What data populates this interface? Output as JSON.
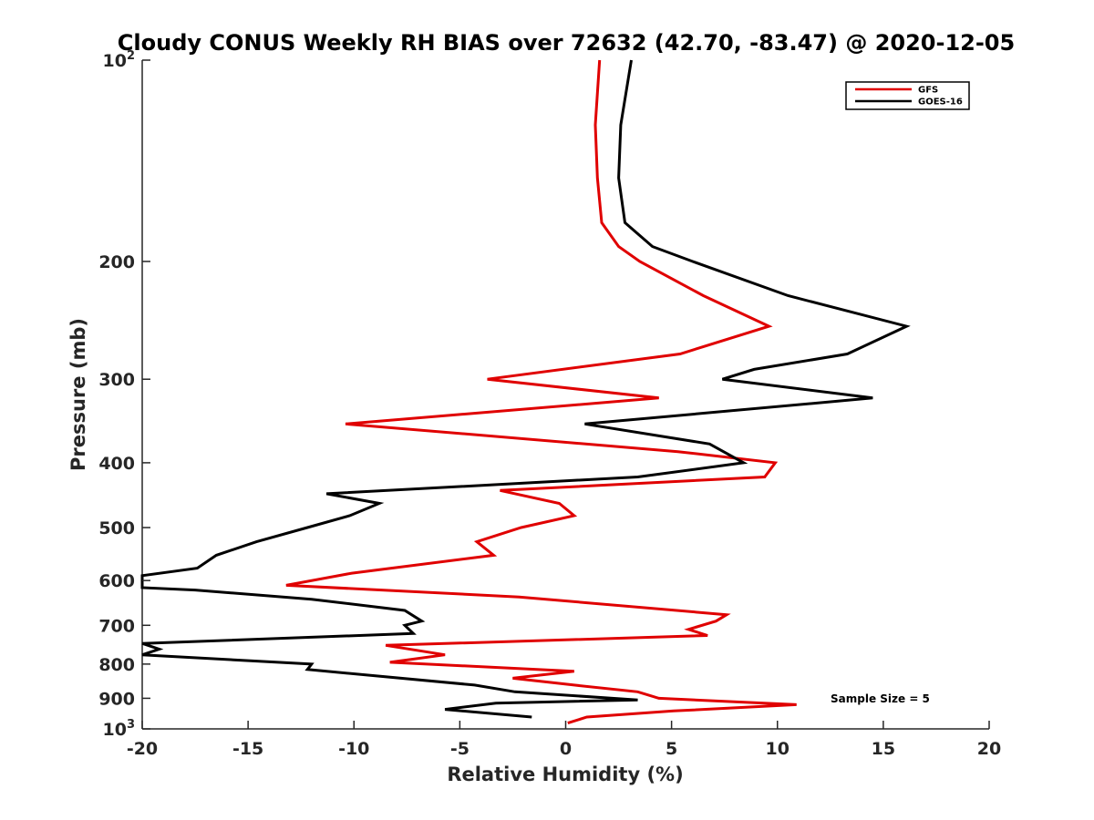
{
  "chart_data": {
    "type": "line",
    "title": "Cloudy CONUS Weekly RH BIAS over 72632 (42.70, -83.47) @ 2020-12-05",
    "xlabel": "Relative Humidity (%)",
    "ylabel": "Pressure (mb)",
    "xlim": [
      -20,
      20
    ],
    "ylim": [
      100,
      1000
    ],
    "yscale": "log",
    "y_reversed": true,
    "x_ticks": [
      -20,
      -15,
      -10,
      -5,
      0,
      5,
      10,
      15,
      20
    ],
    "x_tick_labels": [
      "-20",
      "-15",
      "-10",
      "-5",
      "0",
      "5",
      "10",
      "15",
      "20"
    ],
    "y_ticks": [
      100,
      200,
      300,
      400,
      500,
      600,
      700,
      800,
      900,
      1000
    ],
    "y_tick_labels": [
      {
        "base": "10",
        "exp": "2"
      },
      {
        "base": "200",
        "exp": ""
      },
      {
        "base": "300",
        "exp": ""
      },
      {
        "base": "400",
        "exp": ""
      },
      {
        "base": "500",
        "exp": ""
      },
      {
        "base": "600",
        "exp": ""
      },
      {
        "base": "700",
        "exp": ""
      },
      {
        "base": "800",
        "exp": ""
      },
      {
        "base": "900",
        "exp": ""
      },
      {
        "base": "10",
        "exp": "3"
      }
    ],
    "grid": false,
    "legend": "top-right",
    "annotation": "Sample Size = 5",
    "series": [
      {
        "name": "GFS",
        "color": "#e00000",
        "points": [
          [
            1.6,
            100
          ],
          [
            1.4,
            125
          ],
          [
            1.5,
            150
          ],
          [
            1.7,
            175
          ],
          [
            2.5,
            190
          ],
          [
            3.5,
            200
          ],
          [
            6.5,
            225
          ],
          [
            9.6,
            250
          ],
          [
            5.4,
            275
          ],
          [
            -3.7,
            300
          ],
          [
            4.4,
            320
          ],
          [
            -10.4,
            350
          ],
          [
            5.3,
            385
          ],
          [
            9.9,
            400
          ],
          [
            9.4,
            420
          ],
          [
            -3.1,
            440
          ],
          [
            -0.3,
            460
          ],
          [
            0.4,
            480
          ],
          [
            -2.1,
            500
          ],
          [
            -4.2,
            525
          ],
          [
            -3.4,
            550
          ],
          [
            -10.1,
            585
          ],
          [
            -13.2,
            610
          ],
          [
            -2.2,
            635
          ],
          [
            7.6,
            675
          ],
          [
            7.1,
            690
          ],
          [
            5.8,
            710
          ],
          [
            6.7,
            725
          ],
          [
            -8.5,
            750
          ],
          [
            -5.7,
            775
          ],
          [
            -8.3,
            795
          ],
          [
            0.4,
            820
          ],
          [
            -2.5,
            840
          ],
          [
            0.4,
            860
          ],
          [
            3.4,
            880
          ],
          [
            4.4,
            900
          ],
          [
            10.9,
            920
          ],
          [
            5.1,
            940
          ],
          [
            1.0,
            960
          ],
          [
            0.1,
            980
          ]
        ]
      },
      {
        "name": "GOES-16",
        "color": "#000000",
        "points": [
          [
            3.1,
            100
          ],
          [
            2.6,
            125
          ],
          [
            2.5,
            150
          ],
          [
            2.8,
            175
          ],
          [
            4.1,
            190
          ],
          [
            6.0,
            200
          ],
          [
            10.5,
            225
          ],
          [
            16.1,
            250
          ],
          [
            13.3,
            275
          ],
          [
            8.9,
            290
          ],
          [
            7.4,
            300
          ],
          [
            14.5,
            320
          ],
          [
            0.9,
            350
          ],
          [
            6.8,
            375
          ],
          [
            8.4,
            400
          ],
          [
            3.4,
            420
          ],
          [
            -11.3,
            445
          ],
          [
            -8.8,
            460
          ],
          [
            -10.2,
            480
          ],
          [
            -12.2,
            500
          ],
          [
            -14.6,
            525
          ],
          [
            -16.5,
            550
          ],
          [
            -17.4,
            575
          ],
          [
            -20.0,
            590
          ],
          [
            -20.0,
            615
          ],
          [
            -17.5,
            620
          ],
          [
            -12.0,
            640
          ],
          [
            -7.6,
            665
          ],
          [
            -6.8,
            690
          ],
          [
            -7.6,
            700
          ],
          [
            -7.2,
            720
          ],
          [
            -20.0,
            745
          ],
          [
            -19.2,
            760
          ],
          [
            -20.0,
            775
          ],
          [
            -12.0,
            800
          ],
          [
            -12.2,
            815
          ],
          [
            -4.3,
            860
          ],
          [
            -2.4,
            880
          ],
          [
            3.4,
            905
          ],
          [
            -3.3,
            915
          ],
          [
            -5.7,
            935
          ],
          [
            -1.6,
            960
          ]
        ]
      }
    ]
  }
}
